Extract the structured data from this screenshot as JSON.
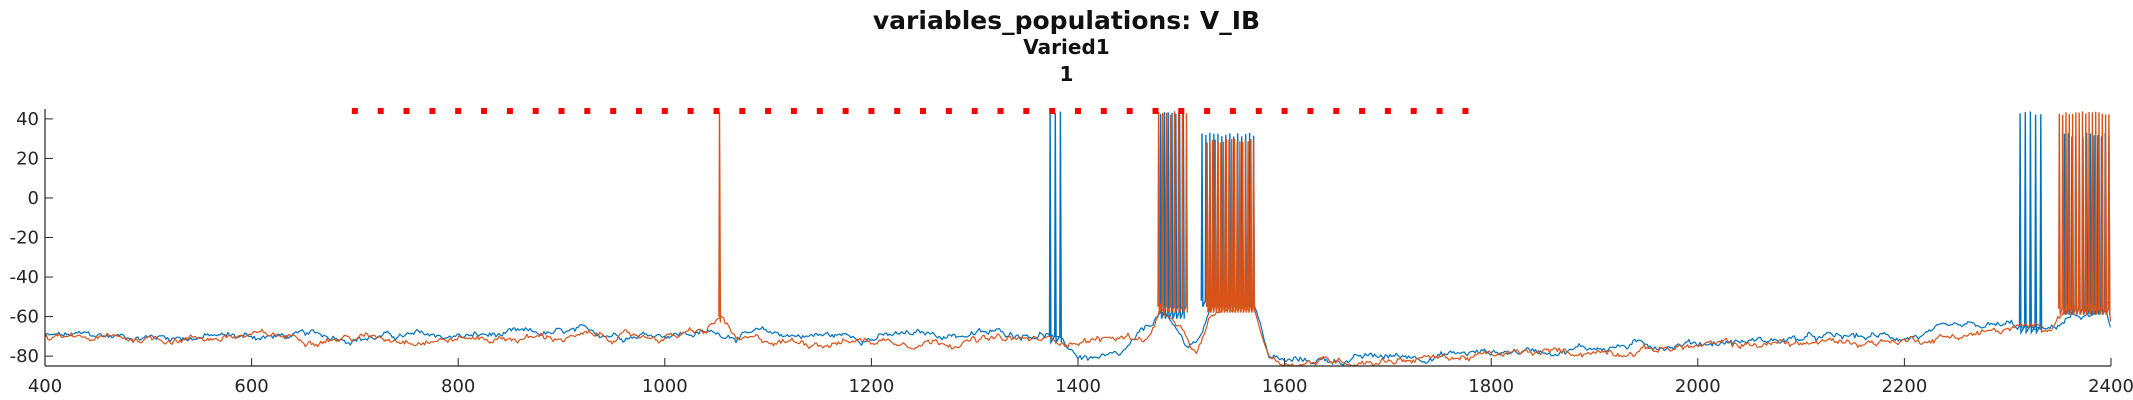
{
  "titles": {
    "main": "variables_populations: V_IB",
    "sub": "Varied1",
    "sub2": "1"
  },
  "chart_data": {
    "type": "line",
    "title": "variables_populations: V_IB",
    "subtitle": [
      "Varied1",
      "1"
    ],
    "xlabel": "",
    "ylabel": "",
    "xlim": [
      400,
      2400
    ],
    "ylim": [
      -85,
      45
    ],
    "xticks": [
      400,
      600,
      800,
      1000,
      1200,
      1400,
      1600,
      1800,
      2000,
      2200,
      2400
    ],
    "yticks": [
      -80,
      -60,
      -40,
      -20,
      0,
      20,
      40
    ],
    "grid": false,
    "colors": {
      "series1": "#0072BD",
      "series2": "#D95319",
      "markers": "#FF0000"
    },
    "marker_row": {
      "y": 44,
      "x_start": 700,
      "x_end": 1780,
      "step": 25
    },
    "series": [
      {
        "color": "#0072BD",
        "baseline": [
          [
            400,
            -70
          ],
          [
            600,
            -70
          ],
          [
            800,
            -70
          ],
          [
            1000,
            -68
          ],
          [
            1200,
            -70
          ],
          [
            1370,
            -68
          ],
          [
            1380,
            -72
          ],
          [
            1400,
            -80
          ],
          [
            1440,
            -82
          ],
          [
            1470,
            -65
          ],
          [
            1480,
            -58
          ],
          [
            1505,
            -75
          ],
          [
            1520,
            -70
          ],
          [
            1530,
            -52
          ],
          [
            1570,
            -52
          ],
          [
            1585,
            -80
          ],
          [
            1600,
            -83
          ],
          [
            1800,
            -78
          ],
          [
            2000,
            -73
          ],
          [
            2200,
            -70
          ],
          [
            2300,
            -65
          ],
          [
            2340,
            -68
          ],
          [
            2360,
            -60
          ],
          [
            2395,
            -60
          ],
          [
            2400,
            -68
          ]
        ],
        "spike_bursts": [
          {
            "x_start": 1373,
            "x_end": 1383,
            "count": 3,
            "peak": 44,
            "rest": -70
          },
          {
            "x_start": 1480,
            "x_end": 1502,
            "count": 7,
            "peak": 44,
            "rest": -58
          },
          {
            "x_start": 1520,
            "x_end": 1570,
            "count": 14,
            "peak": 33,
            "rest": -52
          },
          {
            "x_start": 2312,
            "x_end": 2332,
            "count": 5,
            "peak": 44,
            "rest": -65
          },
          {
            "x_start": 2355,
            "x_end": 2398,
            "count": 13,
            "peak": 33,
            "rest": -56
          }
        ]
      },
      {
        "color": "#D95319",
        "baseline": [
          [
            400,
            -72
          ],
          [
            600,
            -70
          ],
          [
            800,
            -71
          ],
          [
            1000,
            -70
          ],
          [
            1040,
            -68
          ],
          [
            1055,
            -60
          ],
          [
            1070,
            -73
          ],
          [
            1200,
            -72
          ],
          [
            1350,
            -72
          ],
          [
            1400,
            -72
          ],
          [
            1470,
            -70
          ],
          [
            1480,
            -55
          ],
          [
            1505,
            -72
          ],
          [
            1515,
            -80
          ],
          [
            1530,
            -60
          ],
          [
            1570,
            -55
          ],
          [
            1585,
            -80
          ],
          [
            1600,
            -83
          ],
          [
            1800,
            -80
          ],
          [
            2000,
            -75
          ],
          [
            2200,
            -72
          ],
          [
            2340,
            -65
          ],
          [
            2355,
            -55
          ],
          [
            2398,
            -56
          ],
          [
            2400,
            -70
          ]
        ],
        "spike_bursts": [
          {
            "x_start": 1053,
            "x_end": 1053,
            "count": 1,
            "peak": 44,
            "rest": -60
          },
          {
            "x_start": 1478,
            "x_end": 1505,
            "count": 8,
            "peak": 44,
            "rest": -55
          },
          {
            "x_start": 1525,
            "x_end": 1570,
            "count": 18,
            "peak": 30,
            "rest": -55
          },
          {
            "x_start": 2350,
            "x_end": 2398,
            "count": 16,
            "peak": 44,
            "rest": -56
          }
        ]
      }
    ]
  }
}
